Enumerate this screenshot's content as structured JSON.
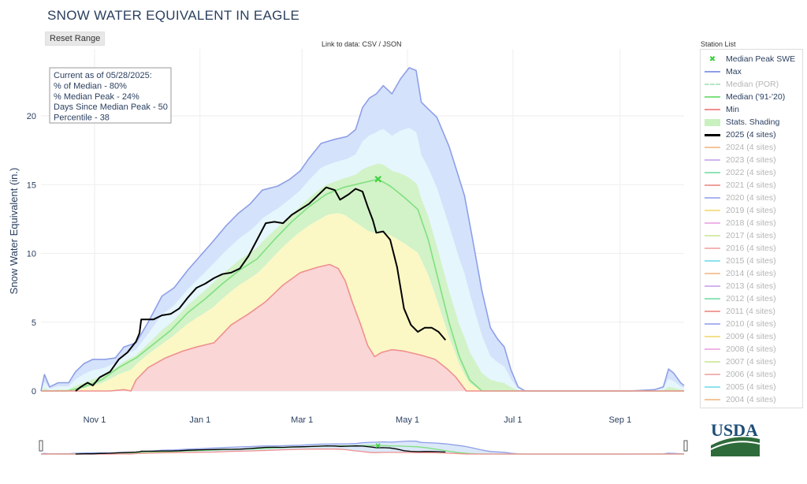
{
  "page": {
    "title": "SNOW WATER EQUIVALENT IN EAGLE",
    "reset_label": "Reset Range",
    "link_text": "Link to data: CSV / JSON",
    "legend_title": "Station List",
    "logo_text": "USDA"
  },
  "colors": {
    "max": "#8e9fe8",
    "max_fill": "#d4e2fb",
    "band_upper": "#e6f6fd",
    "band_mid": "#d2f2c8",
    "band_low": "#fbf8c6",
    "min_fill": "#fad6d6",
    "min": "#f08f8f",
    "median": "#7fe07f",
    "median_por": "#b8e6c4",
    "current": "#000000",
    "peak": "#3fd13f"
  },
  "chart_data": {
    "type": "line",
    "ylabel": "Snow Water Equivalent (in.)",
    "xlabel": "",
    "x_ticks": [
      "Nov 1",
      "Jan 1",
      "Mar 1",
      "May 1",
      "Jul 1",
      "Sep 1"
    ],
    "x_tick_days": [
      31,
      92,
      151,
      212,
      273,
      335
    ],
    "x_range_days": [
      0,
      372
    ],
    "y_ticks": [
      0,
      5,
      10,
      15,
      20
    ],
    "ylim": [
      0,
      23.8
    ],
    "annotation": [
      "Current as of 05/28/2025:",
      "% of Median - 80%",
      "% Median Peak - 24%",
      "Days Since Median Peak - 50",
      "Percentile - 38"
    ],
    "median_peak": {
      "day": 195,
      "value": 15.4
    },
    "series": [
      {
        "name": "Max",
        "color": "#8e9fe8",
        "points": [
          [
            0,
            0
          ],
          [
            2,
            1.2
          ],
          [
            5,
            0.3
          ],
          [
            10,
            0.6
          ],
          [
            16,
            0.6
          ],
          [
            20,
            1.4
          ],
          [
            25,
            2.0
          ],
          [
            30,
            2.3
          ],
          [
            37,
            2.3
          ],
          [
            43,
            2.4
          ],
          [
            48,
            3.2
          ],
          [
            55,
            3.5
          ],
          [
            62,
            5.0
          ],
          [
            70,
            6.9
          ],
          [
            77,
            7.5
          ],
          [
            85,
            8.8
          ],
          [
            92,
            9.8
          ],
          [
            99,
            10.8
          ],
          [
            107,
            12.0
          ],
          [
            114,
            12.9
          ],
          [
            121,
            13.6
          ],
          [
            128,
            14.6
          ],
          [
            137,
            14.9
          ],
          [
            144,
            15.4
          ],
          [
            150,
            16.0
          ],
          [
            155,
            16.9
          ],
          [
            162,
            18.0
          ],
          [
            170,
            18.3
          ],
          [
            177,
            18.5
          ],
          [
            182,
            19.0
          ],
          [
            186,
            20.6
          ],
          [
            190,
            21.3
          ],
          [
            194,
            21.6
          ],
          [
            198,
            22.2
          ],
          [
            203,
            21.6
          ],
          [
            208,
            22.7
          ],
          [
            213,
            23.5
          ],
          [
            217,
            23.3
          ],
          [
            220,
            21.0
          ],
          [
            224,
            20.5
          ],
          [
            229,
            19.9
          ],
          [
            232,
            19.0
          ],
          [
            236,
            17.8
          ],
          [
            240,
            16.2
          ],
          [
            245,
            14.2
          ],
          [
            250,
            10.8
          ],
          [
            255,
            7.3
          ],
          [
            260,
            4.6
          ],
          [
            264,
            3.8
          ],
          [
            268,
            3.2
          ],
          [
            272,
            1.5
          ],
          [
            276,
            0.3
          ],
          [
            280,
            0
          ],
          [
            340,
            0
          ],
          [
            355,
            0.1
          ],
          [
            360,
            0.3
          ],
          [
            363,
            1.6
          ],
          [
            366,
            1.3
          ],
          [
            370,
            0.6
          ],
          [
            372,
            0.4
          ]
        ]
      },
      {
        "name": "Median ('91-'20)",
        "color": "#7fe07f",
        "points": [
          [
            0,
            0
          ],
          [
            15,
            0
          ],
          [
            25,
            0.3
          ],
          [
            35,
            0.8
          ],
          [
            45,
            1.7
          ],
          [
            55,
            2.4
          ],
          [
            65,
            3.4
          ],
          [
            75,
            4.4
          ],
          [
            85,
            5.7
          ],
          [
            95,
            6.7
          ],
          [
            105,
            7.8
          ],
          [
            115,
            8.8
          ],
          [
            125,
            9.6
          ],
          [
            135,
            11.0
          ],
          [
            145,
            12.3
          ],
          [
            155,
            13.4
          ],
          [
            165,
            14.3
          ],
          [
            175,
            14.8
          ],
          [
            185,
            15.1
          ],
          [
            195,
            15.4
          ],
          [
            202,
            14.9
          ],
          [
            210,
            14.1
          ],
          [
            218,
            13.2
          ],
          [
            224,
            11.0
          ],
          [
            230,
            8.0
          ],
          [
            236,
            5.0
          ],
          [
            242,
            2.5
          ],
          [
            248,
            0.8
          ],
          [
            255,
            0
          ],
          [
            372,
            0
          ]
        ]
      },
      {
        "name": "Min",
        "color": "#f08f8f",
        "points": [
          [
            0,
            0
          ],
          [
            30,
            0
          ],
          [
            40,
            0
          ],
          [
            48,
            0.1
          ],
          [
            52,
            0
          ],
          [
            55,
            0.8
          ],
          [
            62,
            1.7
          ],
          [
            72,
            2.4
          ],
          [
            82,
            2.9
          ],
          [
            90,
            3.2
          ],
          [
            100,
            3.5
          ],
          [
            110,
            4.8
          ],
          [
            120,
            5.6
          ],
          [
            130,
            6.5
          ],
          [
            140,
            7.7
          ],
          [
            150,
            8.6
          ],
          [
            160,
            9.0
          ],
          [
            167,
            9.2
          ],
          [
            172,
            8.9
          ],
          [
            176,
            8.0
          ],
          [
            180,
            6.5
          ],
          [
            185,
            4.8
          ],
          [
            189,
            3.3
          ],
          [
            193,
            2.5
          ],
          [
            197,
            2.8
          ],
          [
            203,
            3.0
          ],
          [
            210,
            2.9
          ],
          [
            220,
            2.6
          ],
          [
            228,
            2.3
          ],
          [
            235,
            1.6
          ],
          [
            240,
            1.0
          ],
          [
            246,
            0
          ],
          [
            372,
            0
          ]
        ]
      },
      {
        "name": "2025 (4 sites)",
        "color": "#000000",
        "points": [
          [
            20,
            0
          ],
          [
            23,
            0.3
          ],
          [
            27,
            0.6
          ],
          [
            30,
            0.4
          ],
          [
            34,
            1.0
          ],
          [
            40,
            1.4
          ],
          [
            45,
            2.3
          ],
          [
            50,
            2.8
          ],
          [
            55,
            3.6
          ],
          [
            57,
            4.2
          ],
          [
            58,
            5.2
          ],
          [
            60,
            5.2
          ],
          [
            65,
            5.2
          ],
          [
            70,
            5.5
          ],
          [
            75,
            5.6
          ],
          [
            80,
            6.0
          ],
          [
            85,
            6.8
          ],
          [
            90,
            7.5
          ],
          [
            95,
            7.8
          ],
          [
            100,
            8.2
          ],
          [
            105,
            8.5
          ],
          [
            110,
            8.6
          ],
          [
            115,
            8.9
          ],
          [
            120,
            9.8
          ],
          [
            125,
            11.0
          ],
          [
            130,
            12.2
          ],
          [
            135,
            12.3
          ],
          [
            140,
            12.2
          ],
          [
            145,
            12.8
          ],
          [
            150,
            13.2
          ],
          [
            155,
            13.6
          ],
          [
            160,
            14.2
          ],
          [
            165,
            14.8
          ],
          [
            170,
            14.6
          ],
          [
            173,
            13.9
          ],
          [
            178,
            14.3
          ],
          [
            182,
            14.7
          ],
          [
            186,
            14.5
          ],
          [
            189,
            13.4
          ],
          [
            192,
            12.4
          ],
          [
            194,
            11.5
          ],
          [
            198,
            11.6
          ],
          [
            202,
            11.0
          ],
          [
            206,
            9.0
          ],
          [
            210,
            6.0
          ],
          [
            214,
            4.8
          ],
          [
            218,
            4.3
          ],
          [
            222,
            4.6
          ],
          [
            226,
            4.6
          ],
          [
            230,
            4.3
          ],
          [
            234,
            3.7
          ]
        ]
      }
    ],
    "legend": [
      {
        "label": "Median Peak SWE",
        "kind": "marker",
        "color": "#3fd13f",
        "faded": false
      },
      {
        "label": "Max",
        "kind": "line",
        "color": "#8e9fe8",
        "faded": false
      },
      {
        "label": "Median (POR)",
        "kind": "dash",
        "color": "#b8e6c4",
        "faded": true
      },
      {
        "label": "Median ('91-'20)",
        "kind": "line",
        "color": "#7fe07f",
        "faded": false
      },
      {
        "label": "Min",
        "kind": "line",
        "color": "#f08f8f",
        "faded": false
      },
      {
        "label": "Stats. Shading",
        "kind": "box",
        "color": "#c9f0bf",
        "faded": false
      },
      {
        "label": "2025 (4 sites)",
        "kind": "line",
        "color": "#000000",
        "faded": false
      },
      {
        "label": "2024 (4 sites)",
        "kind": "line",
        "color": "#f5c69a",
        "faded": true
      },
      {
        "label": "2023 (4 sites)",
        "kind": "line",
        "color": "#d2b4f0",
        "faded": true
      },
      {
        "label": "2022 (4 sites)",
        "kind": "line",
        "color": "#8fe3b8",
        "faded": true
      },
      {
        "label": "2021 (4 sites)",
        "kind": "line",
        "color": "#f0a09a",
        "faded": true
      },
      {
        "label": "2020 (4 sites)",
        "kind": "line",
        "color": "#a9b4f0",
        "faded": true
      },
      {
        "label": "2019 (4 sites)",
        "kind": "line",
        "color": "#f5e08a",
        "faded": true
      },
      {
        "label": "2018 (4 sites)",
        "kind": "line",
        "color": "#f0b4e8",
        "faded": true
      },
      {
        "label": "2017 (4 sites)",
        "kind": "line",
        "color": "#d6ecaa",
        "faded": true
      },
      {
        "label": "2016 (4 sites)",
        "kind": "line",
        "color": "#f5b4b4",
        "faded": true
      },
      {
        "label": "2015 (4 sites)",
        "kind": "line",
        "color": "#8ee3f0",
        "faded": true
      },
      {
        "label": "2014 (4 sites)",
        "kind": "line",
        "color": "#f5c69a",
        "faded": true
      },
      {
        "label": "2013 (4 sites)",
        "kind": "line",
        "color": "#d2b4f0",
        "faded": true
      },
      {
        "label": "2012 (4 sites)",
        "kind": "line",
        "color": "#8fe3b8",
        "faded": true
      },
      {
        "label": "2011 (4 sites)",
        "kind": "line",
        "color": "#f0a09a",
        "faded": true
      },
      {
        "label": "2010 (4 sites)",
        "kind": "line",
        "color": "#a9b4f0",
        "faded": true
      },
      {
        "label": "2009 (4 sites)",
        "kind": "line",
        "color": "#f5e08a",
        "faded": true
      },
      {
        "label": "2008 (4 sites)",
        "kind": "line",
        "color": "#f0b4e8",
        "faded": true
      },
      {
        "label": "2007 (4 sites)",
        "kind": "line",
        "color": "#d6ecaa",
        "faded": true
      },
      {
        "label": "2006 (4 sites)",
        "kind": "line",
        "color": "#f5b4b4",
        "faded": true
      },
      {
        "label": "2005 (4 sites)",
        "kind": "line",
        "color": "#8ee3f0",
        "faded": true
      },
      {
        "label": "2004 (4 sites)",
        "kind": "line",
        "color": "#f5c69a",
        "faded": true
      }
    ]
  }
}
